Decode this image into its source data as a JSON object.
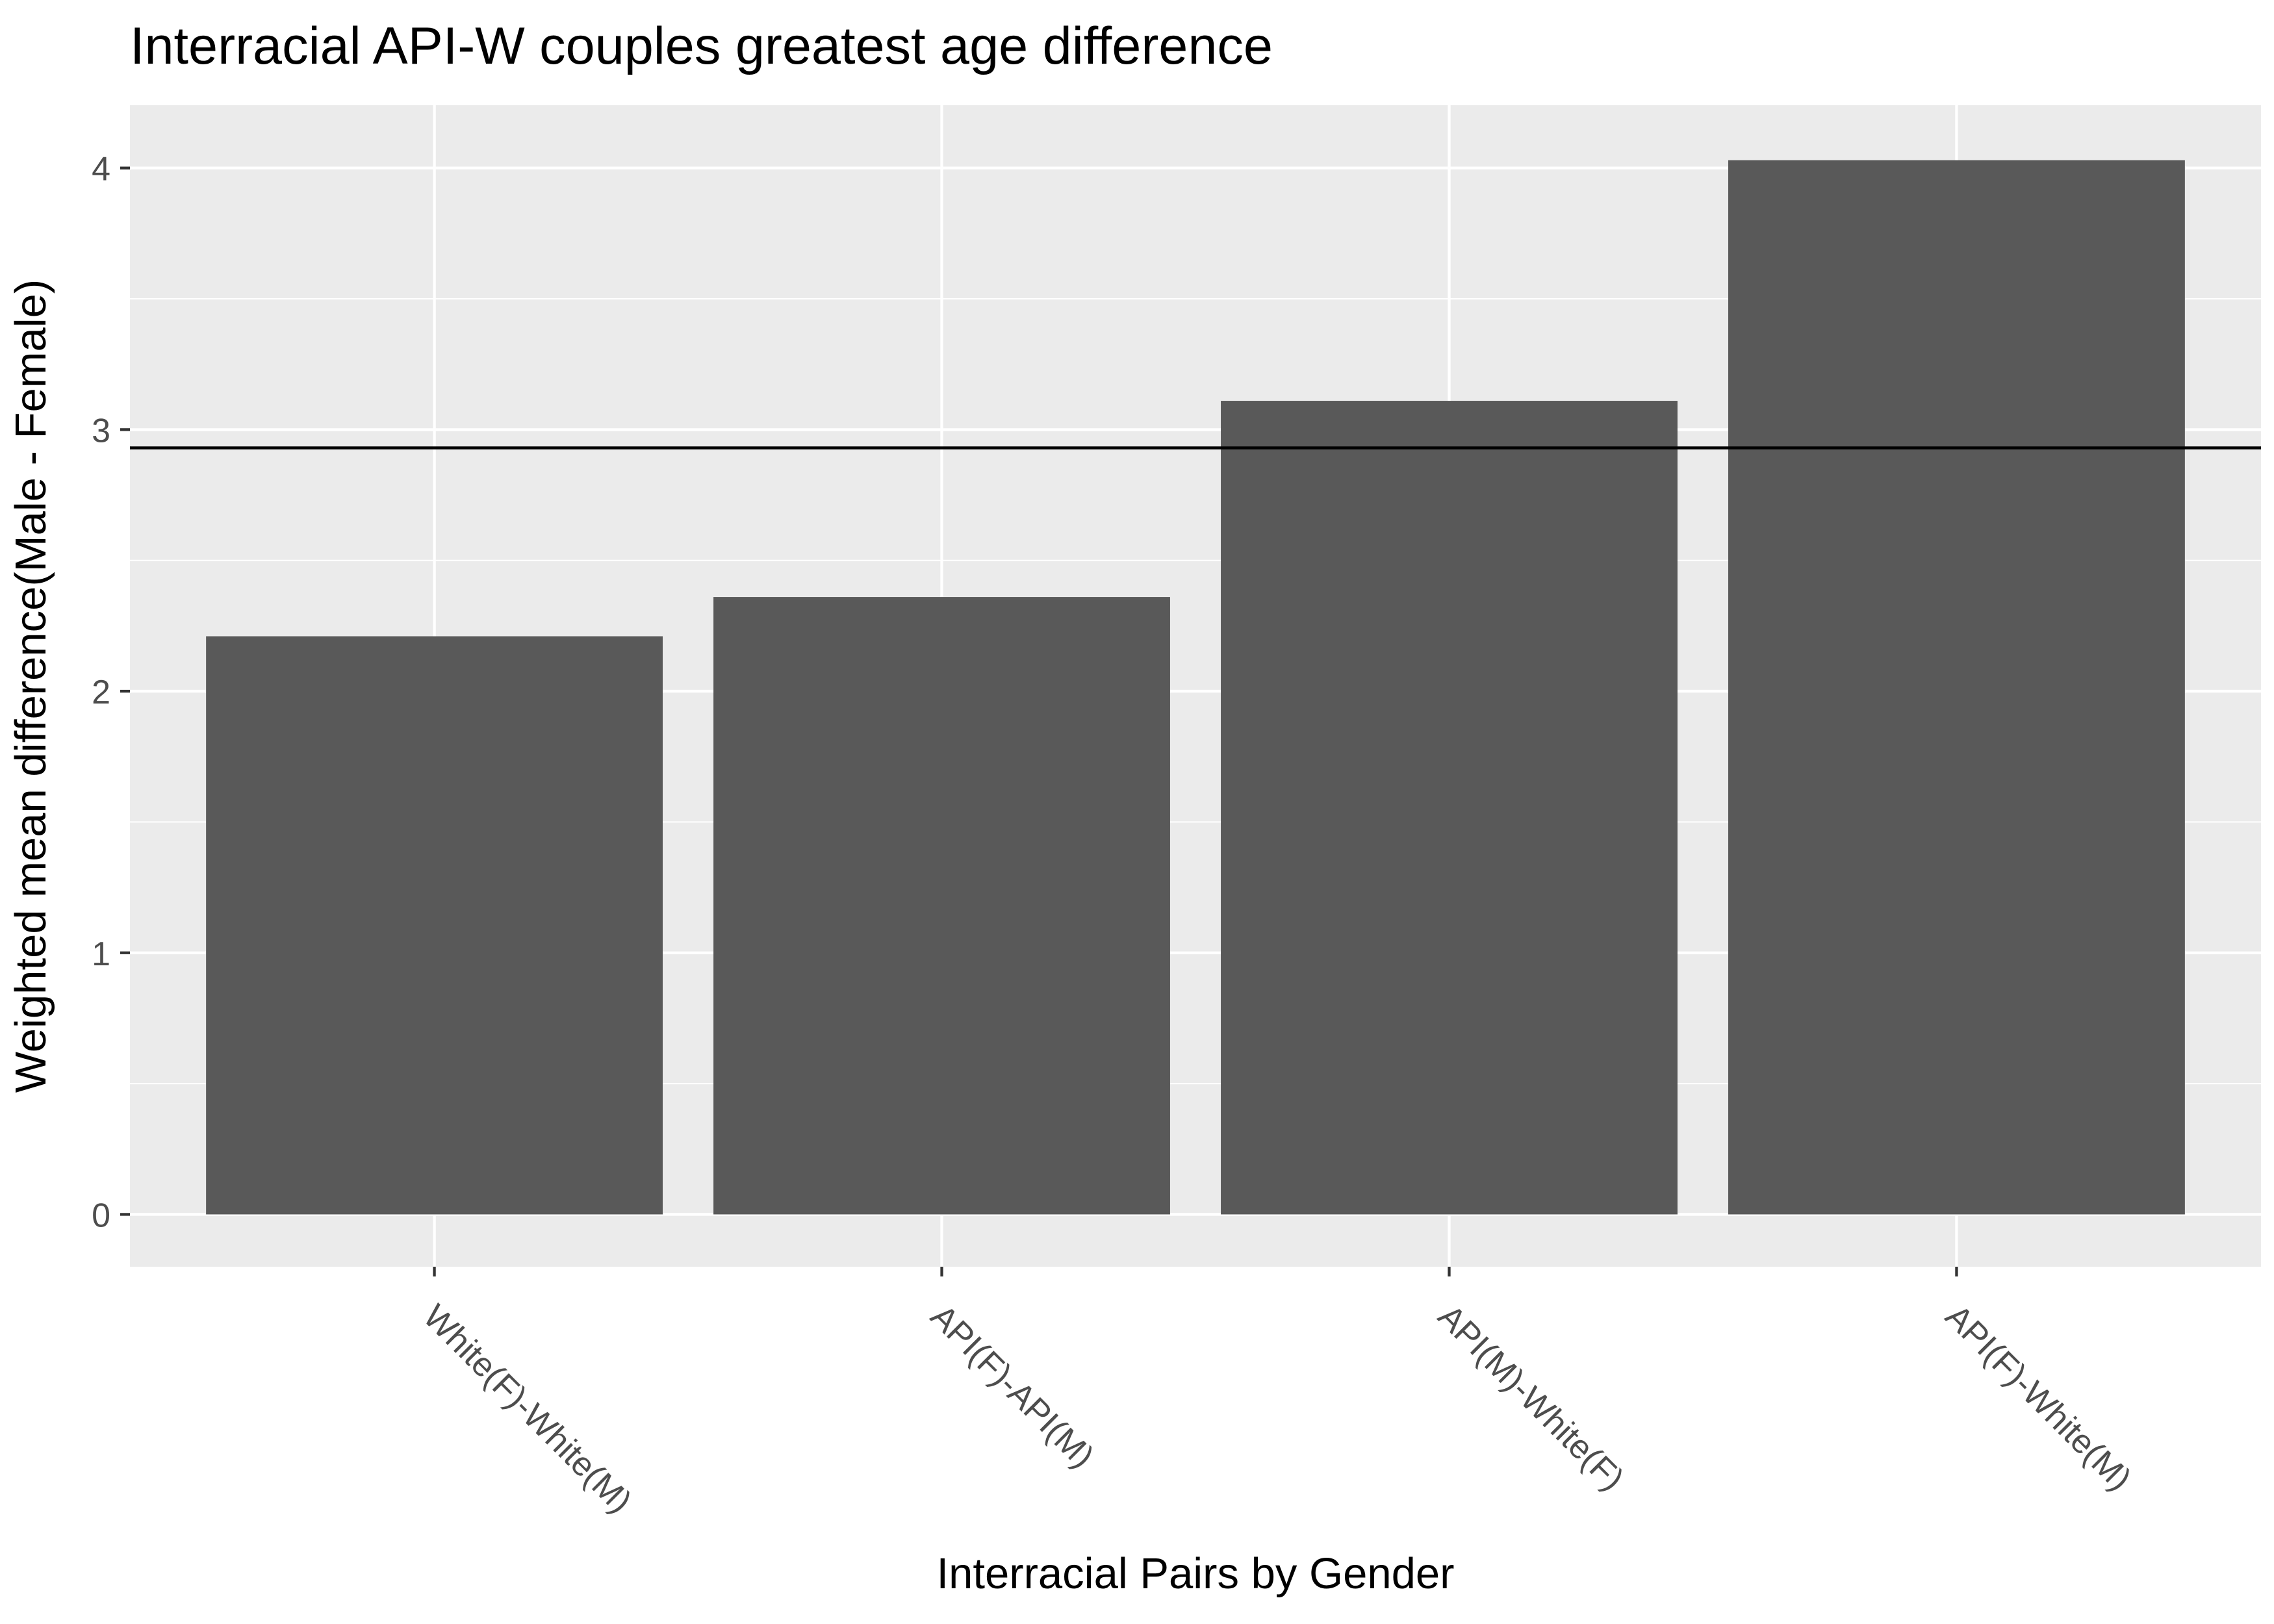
{
  "chart_data": {
    "type": "bar",
    "title": "Interracial API-W couples greatest age difference",
    "xlabel": "Interracial Pairs by Gender",
    "ylabel": "Weighted mean difference(Male - Female)",
    "categories": [
      "White(F)-White(M)",
      "API(F)-API(M)",
      "API(M)-White(F)",
      "API(F)-White(M)"
    ],
    "values": [
      2.21,
      2.36,
      3.11,
      4.03
    ],
    "yticks": [
      0,
      1,
      2,
      3,
      4
    ],
    "ylim": [
      -0.2,
      4.24
    ],
    "reference_line": 2.93,
    "grid": true,
    "legend": "none",
    "colors": {
      "bar": "#595959",
      "panel_background": "#ebebeb",
      "grid": "#ffffff",
      "reference_line": "#000000",
      "tick_label": "#4d4d4d",
      "tick_mark": "#333333"
    }
  }
}
